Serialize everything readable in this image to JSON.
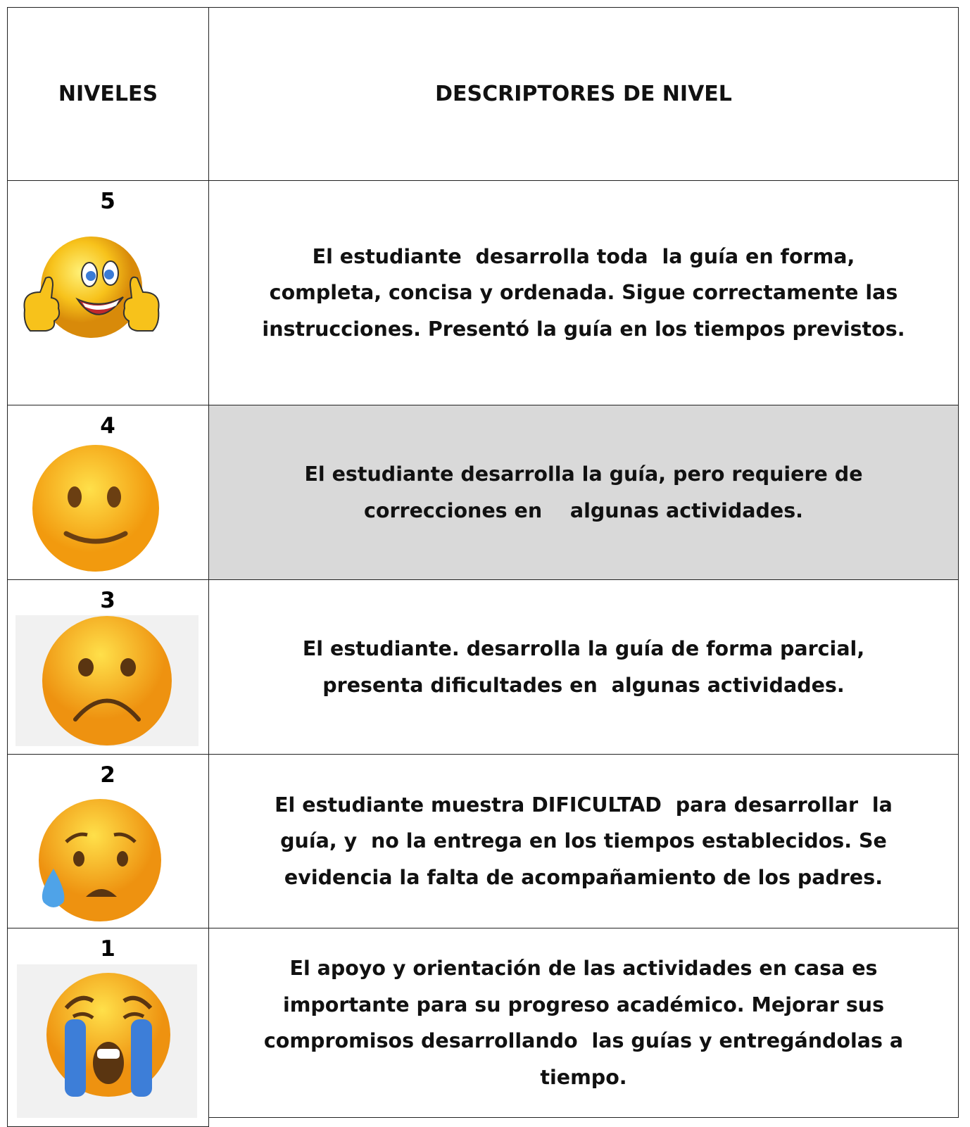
{
  "header": {
    "levels": "NIVELES",
    "descriptors": "DESCRIPTORES DE NIVEL"
  },
  "rows": [
    {
      "level": "5",
      "lines": [
        "El estudiante  desarrolla toda  la guía en forma,",
        "completa, concisa y ordenada. Sigue correctamente las",
        "instrucciones. Presentó la guía en los tiempos previstos."
      ]
    },
    {
      "level": "4",
      "lines": [
        "El estudiante desarrolla la guía, pero requiere de",
        "correcciones en    algunas actividades."
      ]
    },
    {
      "level": "3",
      "lines": [
        "El estudiante. desarrolla la guía de forma parcial,",
        "presenta dificultades en  algunas actividades."
      ]
    },
    {
      "level": "2",
      "lines": [
        "El estudiante muestra DIFICULTAD  para desarrollar  la",
        "guía, y  no la entrega en los tiempos establecidos. Se",
        "evidencia la falta de acompañamiento de los padres."
      ]
    },
    {
      "level": "1",
      "lines": [
        "El apoyo y orientación de las actividades en casa es",
        "importante para su progreso académico. Mejorar sus",
        "compromisos desarrollando  las guías y entregándolas a",
        "tiempo."
      ]
    }
  ]
}
